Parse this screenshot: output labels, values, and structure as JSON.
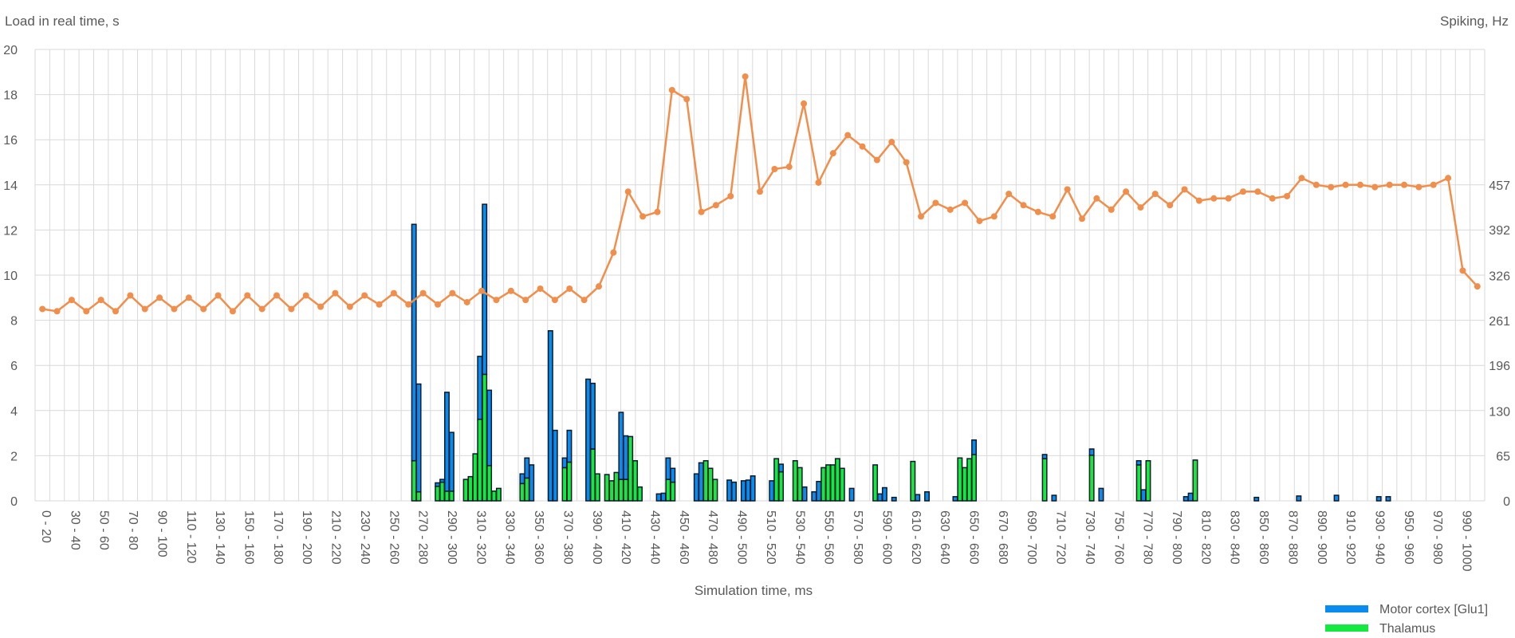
{
  "chart_data": {
    "type": "bar",
    "y_left_title": "Load in real time, s",
    "y_right_title": "Spiking, Hz",
    "x_title": "Simulation time, ms",
    "y_left_ticks": [
      "0",
      "2",
      "4",
      "6",
      "8",
      "10",
      "12",
      "14",
      "16",
      "18",
      "20"
    ],
    "y_right_ticks": [
      "0",
      "65",
      "130",
      "196",
      "261",
      "326",
      "392",
      "457"
    ],
    "ylim_left": [
      0,
      20
    ],
    "ylim_right": [
      0,
      653
    ],
    "x_tick_labels": [
      "0 - 20",
      "30 - 40",
      "50 - 60",
      "70 - 80",
      "90 - 100",
      "110 - 120",
      "130 - 140",
      "150 - 160",
      "170 - 180",
      "190 - 200",
      "210 - 220",
      "230 - 240",
      "250 - 260",
      "270 - 280",
      "290 - 300",
      "310 - 320",
      "330 - 340",
      "350 - 360",
      "370 - 380",
      "390 - 400",
      "410 - 420",
      "430 - 440",
      "450 - 460",
      "470 - 480",
      "490 - 500",
      "510 - 520",
      "530 - 540",
      "550 - 560",
      "570 - 580",
      "590 - 600",
      "610 - 620",
      "630 - 640",
      "650 - 660",
      "670 - 680",
      "690 - 700",
      "710 - 720",
      "730 - 740",
      "750 - 760",
      "770 - 780",
      "790 - 800",
      "810 - 820",
      "830 - 840",
      "850 - 860",
      "870 - 880",
      "890 - 900",
      "910 - 920",
      "930 - 940",
      "950 - 960",
      "970 - 980",
      "990 - 1000"
    ],
    "line": {
      "name": "Load in real time, s",
      "axis": "left",
      "color": "#f28e4b",
      "values": [
        8.5,
        8.4,
        8.9,
        8.4,
        8.9,
        8.4,
        9.1,
        8.5,
        9.0,
        8.5,
        9.0,
        8.5,
        9.1,
        8.4,
        9.1,
        8.5,
        9.1,
        8.5,
        9.1,
        8.6,
        9.2,
        8.6,
        9.1,
        8.7,
        9.2,
        8.7,
        9.2,
        8.7,
        9.2,
        8.8,
        9.3,
        8.9,
        9.3,
        8.9,
        9.4,
        8.9,
        9.4,
        8.9,
        9.5,
        11.0,
        13.7,
        12.6,
        12.8,
        18.2,
        17.8,
        12.8,
        13.1,
        13.5,
        18.8,
        13.7,
        14.7,
        14.8,
        17.6,
        14.1,
        15.4,
        16.2,
        15.7,
        15.1,
        15.9,
        15.0,
        12.6,
        13.2,
        12.9,
        13.2,
        12.4,
        12.6,
        13.6,
        13.1,
        12.8,
        12.6,
        13.8,
        12.5,
        13.4,
        12.9,
        13.7,
        13.0,
        13.6,
        13.1,
        13.8,
        13.3,
        13.4,
        13.4,
        13.7,
        13.7,
        13.4,
        13.5,
        14.3,
        14.0,
        13.9,
        14.0,
        14.0,
        13.9,
        14.0,
        14.0,
        13.9,
        14.0,
        14.3,
        10.2,
        9.5
      ]
    },
    "series": [
      {
        "name": "Motor cortex [Glu1]",
        "axis": "right",
        "color": "#0a8bef",
        "values": [
          0,
          0,
          0,
          0,
          0,
          0,
          0,
          0,
          0,
          0,
          0,
          0,
          0,
          0,
          0,
          0,
          0,
          0,
          0,
          0,
          0,
          0,
          0,
          0,
          0,
          0,
          0,
          0,
          0,
          0,
          0,
          0,
          0,
          0,
          0,
          0,
          0,
          0,
          0,
          0,
          0,
          0,
          0,
          0,
          0,
          0,
          0,
          0,
          0,
          0,
          0,
          0,
          0,
          0,
          0,
          0,
          0,
          0,
          0,
          0,
          0,
          0,
          0,
          0,
          0,
          0,
          0,
          0,
          0,
          0,
          0,
          0,
          0,
          0,
          0,
          0,
          0,
          0,
          0,
          0,
          342,
          156,
          0,
          0,
          0,
          5,
          4,
          143,
          85,
          0,
          0,
          0,
          0,
          0,
          91,
          246,
          109,
          0,
          0,
          0,
          0,
          0,
          0,
          14,
          29,
          52,
          0,
          0,
          0,
          246,
          102,
          0,
          14,
          46,
          0,
          0,
          0,
          176,
          95,
          0,
          0,
          0,
          0,
          0,
          97,
          63,
          0,
          0,
          0,
          0,
          0,
          0,
          10,
          11,
          31,
          20,
          0,
          0,
          0,
          0,
          39,
          55,
          0,
          0,
          0,
          0,
          0,
          30,
          27,
          0,
          29,
          30,
          36,
          0,
          0,
          0,
          29,
          0,
          11,
          0,
          0,
          0,
          0,
          20,
          0,
          13,
          28,
          0,
          0,
          0,
          0,
          0,
          0,
          18,
          0,
          0,
          0,
          0,
          0,
          10,
          19,
          0,
          5,
          0,
          0,
          0,
          0,
          9,
          0,
          13,
          0,
          0,
          0,
          0,
          0,
          6,
          0,
          0,
          0,
          21,
          0,
          0,
          0,
          0,
          0,
          0,
          0,
          0,
          0,
          0,
          0,
          0,
          0,
          0,
          6,
          0,
          8,
          0,
          0,
          0,
          0,
          0,
          0,
          0,
          9,
          0,
          18,
          0,
          0,
          0,
          0,
          0,
          0,
          0,
          6,
          16,
          0,
          0,
          0,
          0,
          0,
          0,
          0,
          0,
          6,
          11,
          0,
          0,
          0,
          0,
          0,
          0,
          0,
          0,
          0,
          0,
          0,
          0,
          0,
          5,
          0,
          0,
          0,
          0,
          0,
          0,
          0,
          0,
          7,
          0,
          0,
          0,
          0,
          0,
          0,
          0,
          8,
          0,
          0,
          0,
          0,
          0,
          0,
          0,
          0,
          6,
          0,
          6,
          0,
          0,
          0,
          0,
          0,
          0,
          0,
          0,
          0,
          0,
          0,
          0,
          0,
          0,
          0,
          0,
          0,
          0,
          0,
          0
        ]
      },
      {
        "name": "Thalamus",
        "axis": "right",
        "color": "#15e83f",
        "values": [
          0,
          0,
          0,
          0,
          0,
          0,
          0,
          0,
          0,
          0,
          0,
          0,
          0,
          0,
          0,
          0,
          0,
          0,
          0,
          0,
          0,
          0,
          0,
          0,
          0,
          0,
          0,
          0,
          0,
          0,
          0,
          0,
          0,
          0,
          0,
          0,
          0,
          0,
          0,
          0,
          0,
          0,
          0,
          0,
          0,
          0,
          0,
          0,
          0,
          0,
          0,
          0,
          0,
          0,
          0,
          0,
          0,
          0,
          0,
          0,
          0,
          0,
          0,
          0,
          0,
          0,
          0,
          0,
          0,
          0,
          0,
          0,
          0,
          0,
          0,
          0,
          0,
          0,
          0,
          0,
          58,
          13,
          0,
          0,
          0,
          21,
          27,
          14,
          14,
          0,
          0,
          31,
          35,
          68,
          118,
          183,
          51,
          14,
          18,
          0,
          0,
          0,
          0,
          25,
          33,
          0,
          0,
          0,
          0,
          0,
          0,
          0,
          48,
          56,
          0,
          0,
          0,
          0,
          75,
          39,
          0,
          38,
          29,
          41,
          31,
          31,
          93,
          58,
          20,
          0,
          0,
          0,
          0,
          0,
          31,
          27,
          0,
          0,
          0,
          0,
          0,
          0,
          58,
          47,
          31,
          0,
          0,
          0,
          0,
          0,
          0,
          0,
          0,
          0,
          0,
          0,
          0,
          61,
          42,
          0,
          0,
          58,
          48,
          0,
          0,
          0,
          0,
          48,
          52,
          52,
          61,
          47,
          0,
          0,
          0,
          0,
          0,
          0,
          52,
          0,
          0,
          0,
          0,
          0,
          0,
          0,
          57,
          0,
          0,
          0,
          0,
          0,
          0,
          0,
          0,
          0,
          62,
          48,
          61,
          67,
          0,
          0,
          0,
          0,
          0,
          0,
          0,
          0,
          0,
          0,
          0,
          0,
          0,
          0,
          61,
          0,
          0,
          0,
          0,
          0,
          0,
          0,
          0,
          0,
          66,
          0,
          0,
          0,
          0,
          0,
          0,
          0,
          0,
          0,
          52,
          0,
          58,
          0,
          0,
          0,
          0,
          0,
          0,
          0,
          0,
          0,
          59,
          0,
          0,
          0,
          0,
          0,
          0,
          0,
          0,
          0,
          0,
          0,
          0,
          0,
          0,
          0,
          0,
          0,
          0,
          0,
          0,
          0,
          0,
          0,
          0,
          0,
          0,
          0,
          0,
          0,
          0,
          0,
          0,
          0,
          0,
          0,
          0,
          0,
          0,
          0,
          0,
          0,
          0,
          0,
          0,
          0,
          0,
          0,
          0,
          0,
          0,
          0,
          0,
          0,
          0,
          0,
          0,
          0
        ]
      }
    ],
    "legend": "bottom-right",
    "grid": true
  }
}
